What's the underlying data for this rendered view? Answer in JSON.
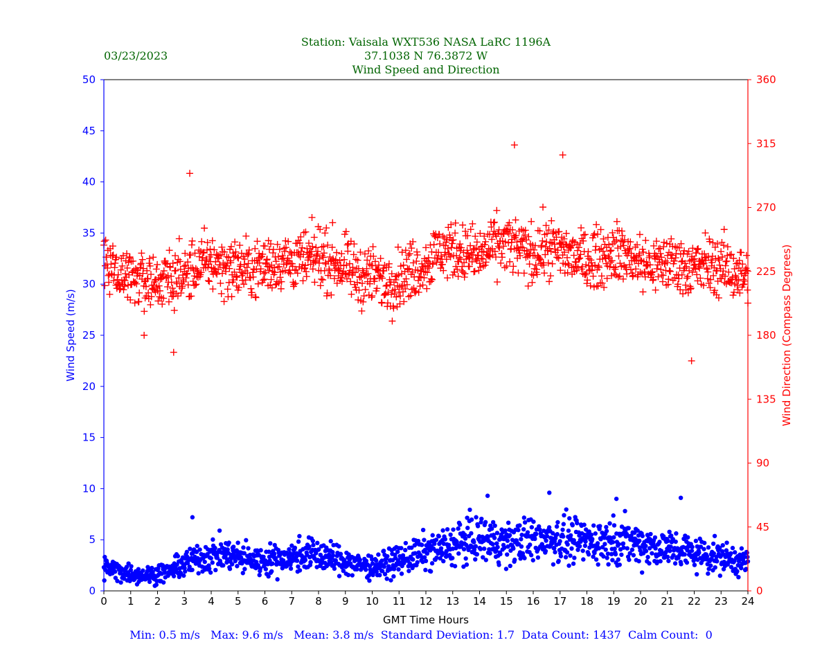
{
  "header": {
    "date": "03/23/2023",
    "title_line1": "Station:  Vaisala WXT536  NASA LaRC 1196A",
    "title_line2": "37.1038 N 76.3872 W",
    "title_line3": "Wind Speed and Direction"
  },
  "footer": {
    "stats": "Min: 0.5 m/s   Max: 9.6 m/s   Mean: 3.8 m/s  Standard Deviation: 1.7  Data Count: 1437  Calm Count:  0"
  },
  "colors": {
    "title": "#006400",
    "speed": "#0000ff",
    "direction": "#ff0000",
    "axis": "#000000",
    "footer": "#0000ff"
  },
  "chart_data": {
    "type": "scatter",
    "title": "Wind Speed and Direction",
    "xlabel": "GMT Time Hours",
    "ylabel_left": "Wind Speed (m/s)",
    "ylabel_right": "Wind Direction (Compass Degrees)",
    "xlim": [
      0,
      24
    ],
    "ylim_left": [
      0,
      50
    ],
    "ylim_right": [
      0,
      360
    ],
    "x_ticks": [
      "0",
      "1",
      "2",
      "3",
      "4",
      "5",
      "6",
      "7",
      "8",
      "9",
      "10",
      "11",
      "12",
      "13",
      "14",
      "15",
      "16",
      "17",
      "18",
      "19",
      "20",
      "21",
      "22",
      "23",
      "24"
    ],
    "y_left_ticks": [
      "0",
      "5",
      "10",
      "15",
      "20",
      "25",
      "30",
      "35",
      "40",
      "45",
      "50"
    ],
    "y_right_ticks": [
      "0",
      "45",
      "90",
      "135",
      "180",
      "225",
      "270",
      "315",
      "360"
    ],
    "series": [
      {
        "name": "Wind Speed",
        "axis": "left",
        "marker": "dot",
        "color": "#0000ff",
        "x": [
          0.0,
          0.5,
          1.0,
          1.5,
          2.0,
          2.5,
          3.0,
          3.5,
          4.0,
          4.5,
          5.0,
          5.5,
          6.0,
          6.5,
          7.0,
          7.5,
          8.0,
          8.5,
          9.0,
          9.5,
          10.0,
          10.5,
          11.0,
          11.5,
          12.0,
          12.5,
          13.0,
          13.5,
          14.0,
          14.5,
          15.0,
          15.5,
          16.0,
          16.5,
          17.0,
          17.5,
          18.0,
          18.5,
          19.0,
          19.5,
          20.0,
          20.5,
          21.0,
          21.5,
          22.0,
          22.5,
          23.0,
          23.5,
          24.0
        ],
        "values": [
          2.3,
          2.0,
          1.7,
          1.5,
          1.7,
          2.0,
          2.6,
          3.2,
          3.5,
          3.6,
          3.3,
          3.0,
          3.0,
          3.2,
          3.3,
          3.6,
          3.5,
          3.1,
          3.0,
          2.5,
          2.4,
          2.6,
          3.0,
          3.4,
          3.8,
          4.0,
          4.5,
          4.8,
          5.0,
          4.9,
          4.6,
          4.8,
          5.0,
          5.2,
          5.0,
          4.9,
          4.8,
          4.9,
          5.0,
          4.9,
          4.6,
          4.3,
          4.2,
          4.0,
          3.7,
          3.5,
          3.3,
          3.0,
          2.8
        ],
        "extremes": [
          {
            "x": 1.9,
            "value": 0.5
          },
          {
            "x": 3.3,
            "value": 7.2
          },
          {
            "x": 14.3,
            "value": 9.3
          },
          {
            "x": 16.6,
            "value": 9.6
          },
          {
            "x": 19.1,
            "value": 9.0
          },
          {
            "x": 21.5,
            "value": 9.1
          }
        ]
      },
      {
        "name": "Wind Direction",
        "axis": "right",
        "marker": "plus",
        "color": "#ff0000",
        "x": [
          0.0,
          0.5,
          1.0,
          1.5,
          2.0,
          2.5,
          3.0,
          3.5,
          4.0,
          4.5,
          5.0,
          5.5,
          6.0,
          6.5,
          7.0,
          7.5,
          8.0,
          8.5,
          9.0,
          9.5,
          10.0,
          10.5,
          11.0,
          11.5,
          12.0,
          12.5,
          13.0,
          13.5,
          14.0,
          14.5,
          15.0,
          15.5,
          16.0,
          16.5,
          17.0,
          17.5,
          18.0,
          18.5,
          19.0,
          19.5,
          20.0,
          20.5,
          21.0,
          21.5,
          22.0,
          22.5,
          23.0,
          23.5,
          24.0
        ],
        "values": [
          232,
          226,
          222,
          218,
          218,
          220,
          222,
          228,
          232,
          228,
          228,
          226,
          230,
          232,
          232,
          232,
          236,
          232,
          228,
          222,
          222,
          218,
          220,
          226,
          230,
          240,
          240,
          238,
          235,
          243,
          245,
          240,
          237,
          242,
          240,
          235,
          233,
          235,
          240,
          236,
          231,
          228,
          232,
          230,
          227,
          230,
          228,
          225,
          220
        ],
        "outliers": [
          {
            "x": 1.5,
            "value": 180
          },
          {
            "x": 2.6,
            "value": 168
          },
          {
            "x": 3.2,
            "value": 294
          },
          {
            "x": 15.3,
            "value": 314
          },
          {
            "x": 17.1,
            "value": 307
          },
          {
            "x": 21.9,
            "value": 162
          }
        ]
      }
    ],
    "stats": {
      "min": 0.5,
      "max": 9.6,
      "mean": 3.8,
      "std_dev": 1.7,
      "data_count": 1437,
      "calm_count": 0
    }
  }
}
